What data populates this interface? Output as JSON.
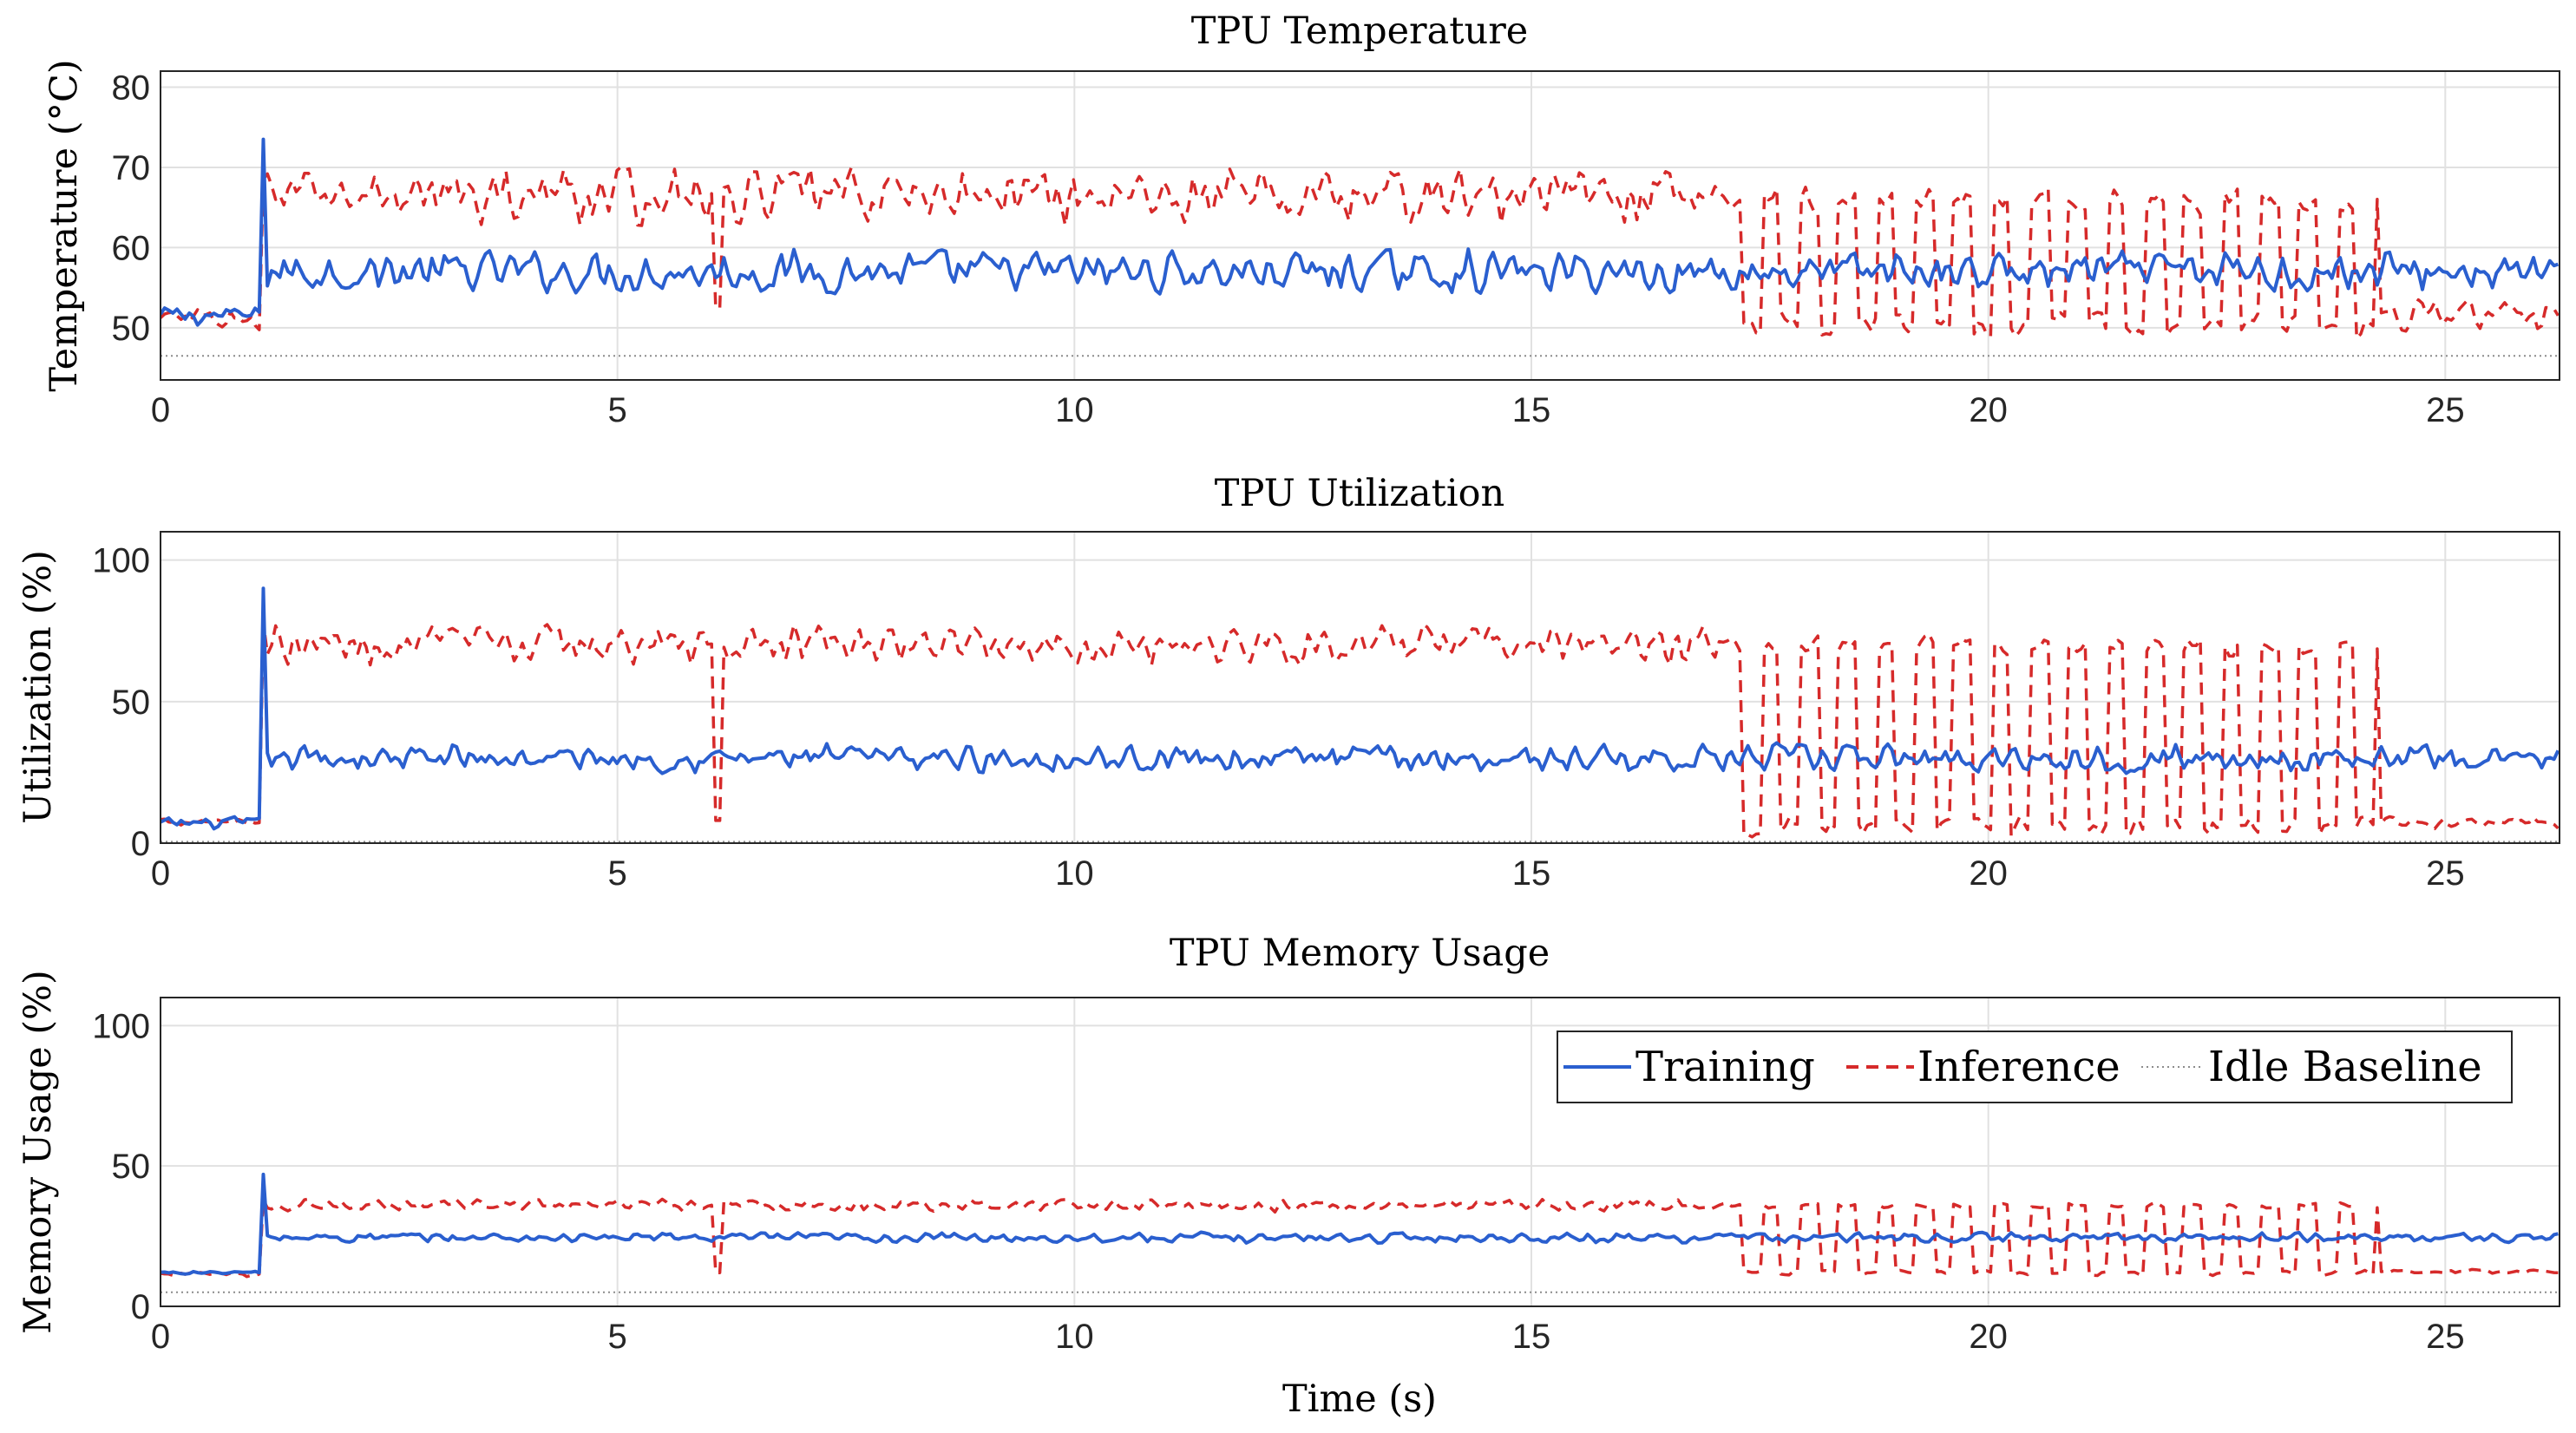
{
  "figure": {
    "xlabel": "Time (s)"
  },
  "legend": {
    "position": "top-right of bottom panel",
    "entries": [
      {
        "label": "Training",
        "color": "#2a5fcf",
        "style": "solid"
      },
      {
        "label": "Inference",
        "color": "#d62a2a",
        "style": "dashed"
      },
      {
        "label": "Idle Baseline",
        "color": "#8c8c8c",
        "style": "dotted"
      }
    ]
  },
  "chart_data": [
    {
      "type": "line",
      "title": "TPU Temperature",
      "xlabel": "",
      "ylabel": "Temperature (°C)",
      "xlim": [
        0,
        26.25
      ],
      "ylim": [
        43.5,
        82
      ],
      "xticks": [
        0,
        5,
        10,
        15,
        20,
        25
      ],
      "yticks": [
        50,
        60,
        70,
        80
      ],
      "grid": true,
      "duration_s": 26.25,
      "phases": {
        "spike_time": 1.1,
        "dip_time": 6.1,
        "alternating_start": 17.1,
        "alternating_end": 24.3,
        "alternating_period": 0.42
      },
      "series": [
        {
          "name": "Training",
          "color": "#2a5fcf",
          "style": "solid",
          "pre": 51.5,
          "pre_noise": 1.5,
          "spike": 73.5,
          "base": 57,
          "noise": 3.0
        },
        {
          "name": "Inference",
          "color": "#d62a2a",
          "style": "dashed",
          "pre": 51,
          "pre_noise": 1.6,
          "spike": 68.5,
          "base": 66.5,
          "noise": 4.0,
          "dip": 52.5,
          "alt_high": 66,
          "alt_low": 50.5,
          "after": 51.5,
          "after_noise": 2.4
        },
        {
          "name": "Idle Baseline",
          "color": "#8c8c8c",
          "style": "dotted",
          "value": 46.5
        }
      ]
    },
    {
      "type": "line",
      "title": "TPU Utilization",
      "xlabel": "",
      "ylabel": "Utilization (%)",
      "xlim": [
        0,
        26.25
      ],
      "ylim": [
        0,
        110
      ],
      "xticks": [
        0,
        5,
        10,
        15,
        20,
        25
      ],
      "yticks": [
        0,
        50,
        100
      ],
      "grid": true,
      "duration_s": 26.25,
      "phases": {
        "spike_time": 1.1,
        "dip_time": 6.1,
        "alternating_start": 17.1,
        "alternating_end": 24.3,
        "alternating_period": 0.42
      },
      "series": [
        {
          "name": "Training",
          "color": "#2a5fcf",
          "style": "solid",
          "pre": 7,
          "pre_noise": 2.5,
          "spike": 90,
          "base": 30,
          "noise": 5.5
        },
        {
          "name": "Inference",
          "color": "#d62a2a",
          "style": "dashed",
          "pre": 8,
          "pre_noise": 2.0,
          "spike": 78,
          "base": 70,
          "noise": 8.0,
          "dip": 8,
          "alt_high": 70,
          "alt_low": 6,
          "after": 7,
          "after_noise": 2.5
        },
        {
          "name": "Idle Baseline",
          "color": "#8c8c8c",
          "style": "dotted",
          "value": 0.5
        }
      ]
    },
    {
      "type": "line",
      "title": "TPU Memory Usage",
      "xlabel": "Time (s)",
      "ylabel": "Memory Usage (%)",
      "xlim": [
        0,
        26.25
      ],
      "ylim": [
        0,
        110
      ],
      "xticks": [
        0,
        5,
        10,
        15,
        20,
        25
      ],
      "yticks": [
        0,
        50,
        100
      ],
      "grid": true,
      "duration_s": 26.25,
      "phases": {
        "spike_time": 1.1,
        "dip_time": 6.1,
        "alternating_start": 17.1,
        "alternating_end": 24.3,
        "alternating_period": 0.42
      },
      "series": [
        {
          "name": "Training",
          "color": "#2a5fcf",
          "style": "solid",
          "pre": 12,
          "pre_noise": 0.8,
          "spike": 47,
          "base": 24.5,
          "noise": 2.0
        },
        {
          "name": "Inference",
          "color": "#d62a2a",
          "style": "dashed",
          "pre": 11.5,
          "pre_noise": 1.0,
          "spike": 38,
          "base": 36,
          "noise": 2.5,
          "dip": 12,
          "alt_high": 36,
          "alt_low": 12,
          "after": 12.5,
          "after_noise": 1.0
        },
        {
          "name": "Idle Baseline",
          "color": "#8c8c8c",
          "style": "dotted",
          "value": 5
        }
      ]
    }
  ]
}
